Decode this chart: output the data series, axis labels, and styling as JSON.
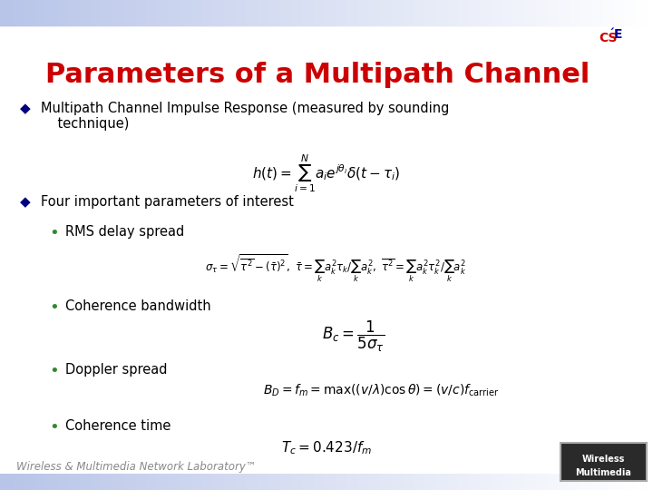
{
  "title": "Parameters of a Multipath Channel",
  "title_color": "#CC0000",
  "title_fontsize": 22,
  "bg_color": "#FFFFFF",
  "top_bar_color_left": "#B8C4E8",
  "top_bar_color_right": "#FFFFFF",
  "bottom_bar_color": "#B8C8E8",
  "bullet1_text": "Multipath Channel Impulse Response (measured by sounding\ntechnique)",
  "bullet2_text": "Four important parameters of interest",
  "sub1_text": "RMS delay spread",
  "sub2_text": "Coherence bandwidth",
  "sub3_text": "Doppler spread",
  "sub4_text": "Coherence time",
  "footer_text": "Wireless & Multimedia Network Laboratory™",
  "bullet_color": "#000080",
  "sub_bullet_color": "#2E8B2E",
  "text_color": "#000000",
  "footer_color": "#888888",
  "figwidth": 7.2,
  "figheight": 5.4,
  "dpi": 100
}
